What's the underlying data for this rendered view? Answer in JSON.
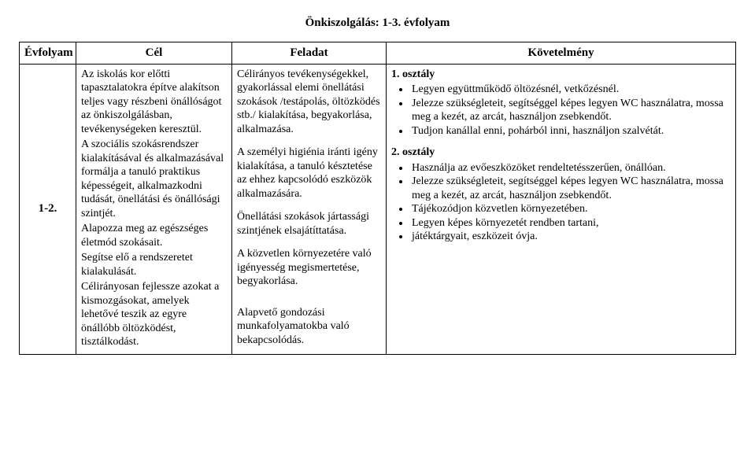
{
  "title": "Önkiszolgálás: 1-3. évfolyam",
  "headers": {
    "grade": "Évfolyam",
    "goal": "Cél",
    "task": "Feladat",
    "requirement": "Követelmény"
  },
  "row": {
    "grade": "1-2.",
    "goal": {
      "p1": "Az iskolás kor előtti tapasztalatokra építve alakítson teljes vagy részbeni önállóságot az önkiszolgálásban, tevékenységeken keresztül.",
      "p2": "A szociális szokásrendszer kialakításával és alkalmazásával formálja a tanuló praktikus képességeit, alkalmazkodni tudását, önellátási és önállósági szintjét.",
      "p3": "Alapozza meg az egészséges életmód szokásait.",
      "p4": "Segítse elő a rendszeretet kialakulását.",
      "p5": "Célirányosan fejlessze azokat a kismozgásokat, amelyek lehetővé teszik az egyre önállóbb öltözködést, tisztálkodást."
    },
    "task": {
      "p1": "Célirányos tevékenységekkel, gyakorlással elemi önellátási szokások /testápolás, öltözködés stb./ kialakítása, begyakorlása, alkalmazása.",
      "p2": "A személyi higiénia iránti igény kialakítása, a tanuló késztetése az ehhez kapcsolódó eszközök alkalmazására.",
      "p3": "Önellátási szokások jártassági szintjének elsajátíttatása.",
      "p4": "A közvetlen környezetére való igényesség megismertetése, begyakorlása.",
      "p5": "Alapvető gondozási munkafolyamatokba való bekapcsolódás."
    },
    "req": {
      "g1": {
        "heading": "1. osztály",
        "items": [
          "Legyen együttműködő öltözésnél, vetkőzésnél.",
          "Jelezze szükségleteit, segítséggel képes legyen WC használatra, mossa meg a kezét, az arcát, használjon zsebkendőt.",
          "Tudjon kanállal enni, pohárból inni, használjon szalvétát."
        ]
      },
      "g2": {
        "heading": "2. osztály",
        "items": [
          "Használja az evőeszközöket rendeltetésszerűen, önállóan.",
          "Jelezze szükségleteit, segítséggel képes legyen WC használatra, mossa meg a kezét, az arcát, használjon zsebkendőt.",
          "Tájékozódjon közvetlen környezetében.",
          "Legyen képes környezetét rendben tartani,",
          "játéktárgyait, eszközeit óvja."
        ]
      }
    }
  }
}
